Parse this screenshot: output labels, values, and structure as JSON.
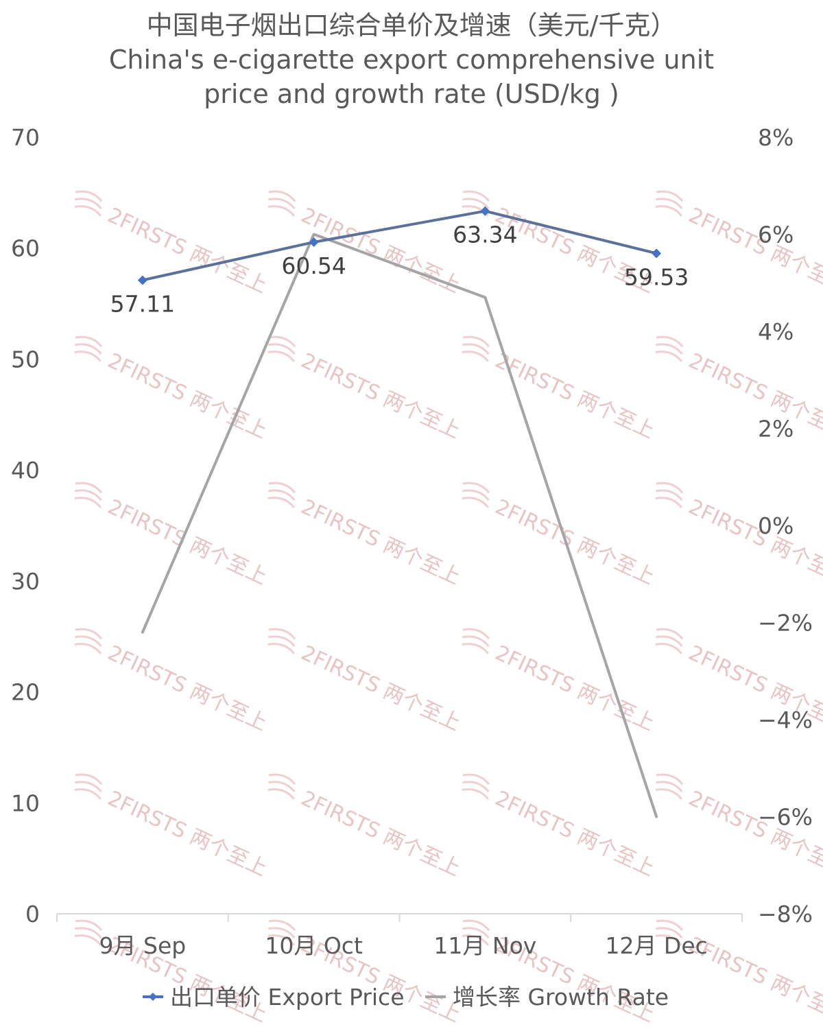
{
  "chart_data": {
    "type": "line",
    "title": "中国电子烟出口综合单价及增速（美元/千克）",
    "subtitle": [
      "China's e-cigarette export comprehensive unit",
      "price and growth rate (USD/kg )"
    ],
    "categories": [
      "9月 Sep",
      "10月 Oct",
      "11月 Nov",
      "12月 Dec"
    ],
    "series": [
      {
        "name": "出口单价 Export Price",
        "axis": "left",
        "values": [
          57.11,
          60.54,
          63.34,
          59.53
        ],
        "data_labels": [
          "57.11",
          "60.54",
          "63.34",
          "59.53"
        ],
        "color": "#4472c4",
        "marker": "diamond"
      },
      {
        "name": "增长率 Growth Rate",
        "axis": "right",
        "values": [
          -2.2,
          6.0,
          4.7,
          -6.0
        ],
        "color": "#a5a5a5",
        "marker": "none"
      }
    ],
    "y_left": {
      "min": 0,
      "max": 70,
      "ticks": [
        "0",
        "10",
        "20",
        "30",
        "40",
        "50",
        "60",
        "70"
      ]
    },
    "y_right": {
      "min": -8,
      "max": 8,
      "ticks": [
        "−8%",
        "−6%",
        "−4%",
        "−2%",
        "0%",
        "2%",
        "4%",
        "6%",
        "8%"
      ]
    },
    "grid": false,
    "legend": "bottom",
    "watermark": "2FIRSTS 两个至上"
  }
}
